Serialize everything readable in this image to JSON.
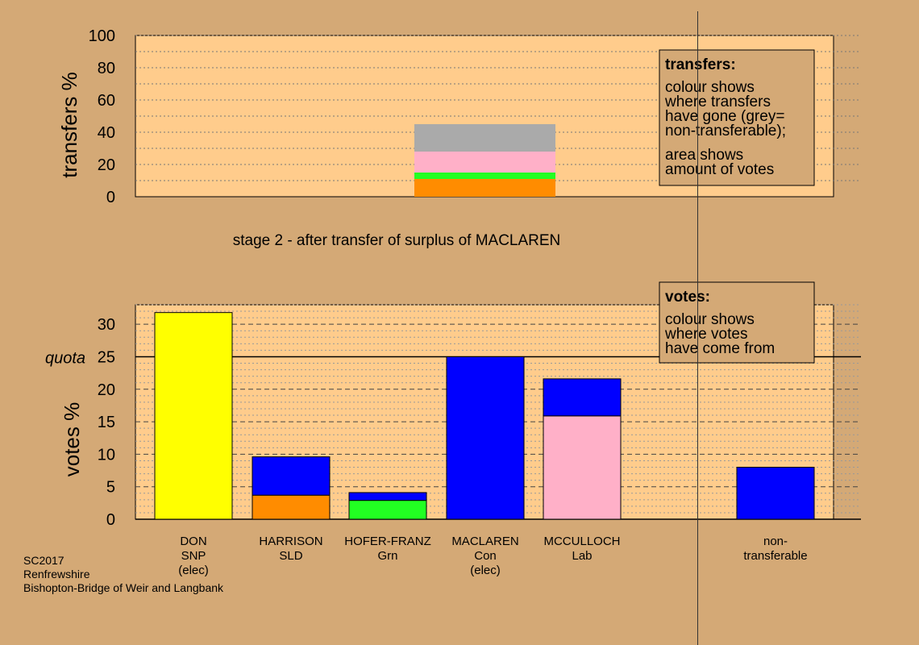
{
  "colors": {
    "background": "#d4a976",
    "panel": "#ffcc8c",
    "SNP": "#ffff00",
    "SLD": "#ff8c00",
    "Grn": "#22ff22",
    "Con": "#0000ff",
    "Lab": "#ffb0c8",
    "nontransferable": "#aaaaaa"
  },
  "chart_data": [
    {
      "type": "bar",
      "stacked": true,
      "ylabel": "transfers %",
      "ylim": [
        0,
        100
      ],
      "yticks": [
        0,
        20,
        40,
        60,
        80,
        100
      ],
      "column": 3,
      "segments": [
        {
          "name": "SLD",
          "color": "#ff8c00",
          "value": 11
        },
        {
          "name": "Grn",
          "color": "#22ff22",
          "value": 4
        },
        {
          "name": "Lab",
          "color": "#ffb0c8",
          "value": 13
        },
        {
          "name": "non-transferable",
          "color": "#aaaaaa",
          "value": 17
        }
      ],
      "legend": {
        "title": "transfers:",
        "lines": [
          "colour shows",
          "where transfers",
          "have gone (grey=",
          "non-transferable);"
        ],
        "lines2": [
          "area shows",
          "amount of votes"
        ]
      }
    },
    {
      "type": "bar",
      "stacked": true,
      "subtitle": "stage 2 - after transfer of surplus of MACLAREN",
      "ylabel": "votes %",
      "ylim": [
        0,
        33
      ],
      "yticks": [
        0,
        5,
        10,
        15,
        20,
        25,
        30
      ],
      "quota": 25,
      "quota_label": "quota",
      "bars": [
        {
          "label": [
            "DON",
            "SNP",
            "(elec)"
          ],
          "segments": [
            {
              "color": "#ffff00",
              "value": 31.8
            }
          ]
        },
        {
          "label": [
            "HARRISON",
            "SLD"
          ],
          "segments": [
            {
              "color": "#ff8c00",
              "value": 3.7
            },
            {
              "color": "#0000ff",
              "value": 5.9
            }
          ]
        },
        {
          "label": [
            "HOFER-FRANZ",
            "Grn"
          ],
          "segments": [
            {
              "color": "#22ff22",
              "value": 2.9
            },
            {
              "color": "#0000ff",
              "value": 1.2
            }
          ]
        },
        {
          "label": [
            "MACLAREN",
            "Con",
            "(elec)"
          ],
          "segments": [
            {
              "color": "#0000ff",
              "value": 25
            }
          ]
        },
        {
          "label": [
            "MCCULLOCH",
            "Lab"
          ],
          "segments": [
            {
              "color": "#ffb0c8",
              "value": 15.9
            },
            {
              "color": "#0000ff",
              "value": 5.7
            }
          ]
        },
        {
          "label": [
            "non-",
            "transferable"
          ],
          "segments": [
            {
              "color": "#0000ff",
              "value": 8
            }
          ]
        }
      ],
      "legend": {
        "title": "votes:",
        "lines": [
          "colour shows",
          "where votes",
          "have come from"
        ]
      }
    }
  ],
  "footer": [
    "SC2017",
    "Renfrewshire",
    "Bishopton-Bridge of Weir and Langbank"
  ]
}
